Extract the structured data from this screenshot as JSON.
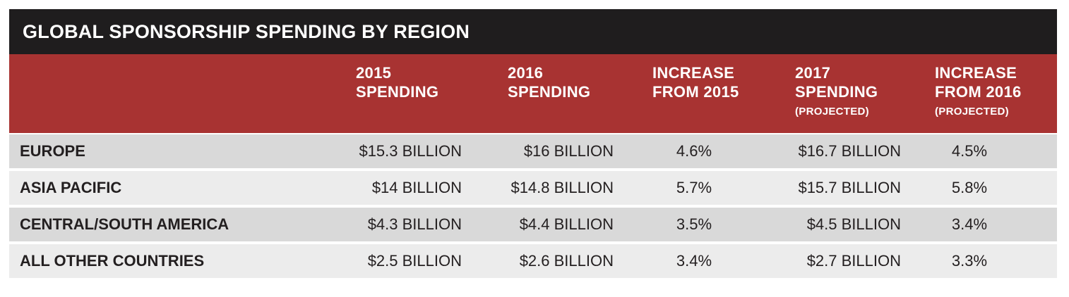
{
  "title": "GLOBAL SPONSORSHIP SPENDING BY REGION",
  "headers": [
    {
      "line1": "2015",
      "line2": "SPENDING",
      "sub": ""
    },
    {
      "line1": "2016",
      "line2": "SPENDING",
      "sub": ""
    },
    {
      "line1": "INCREASE",
      "line2": "FROM 2015",
      "sub": ""
    },
    {
      "line1": "2017",
      "line2": "SPENDING",
      "sub": "(PROJECTED)"
    },
    {
      "line1": "INCREASE",
      "line2": "FROM 2016",
      "sub": "(PROJECTED)"
    }
  ],
  "colors": {
    "title_bg": "#1f1d1e",
    "header_bg": "#a83332",
    "row_dark": "#d9d9d9",
    "row_light": "#ececec"
  },
  "chart_data": {
    "type": "table",
    "title": "GLOBAL SPONSORSHIP SPENDING BY REGION",
    "columns": [
      "",
      "2015 SPENDING",
      "2016 SPENDING",
      "INCREASE FROM 2015",
      "2017 SPENDING (PROJECTED)",
      "INCREASE FROM 2016 (PROJECTED)"
    ],
    "rows": [
      {
        "region": "EUROPE",
        "s2015": "$15.3 BILLION",
        "s2016": "$16 BILLION",
        "inc2015": "4.6%",
        "s2017": "$16.7 BILLION",
        "inc2016": "4.5%"
      },
      {
        "region": "ASIA PACIFIC",
        "s2015": "$14 BILLION",
        "s2016": "$14.8 BILLION",
        "inc2015": "5.7%",
        "s2017": "$15.7 BILLION",
        "inc2016": "5.8%"
      },
      {
        "region": "CENTRAL/SOUTH AMERICA",
        "s2015": "$4.3 BILLION",
        "s2016": "$4.4 BILLION",
        "inc2015": "3.5%",
        "s2017": "$4.5 BILLION",
        "inc2016": "3.4%"
      },
      {
        "region": "ALL OTHER COUNTRIES",
        "s2015": "$2.5 BILLION",
        "s2016": "$2.6 BILLION",
        "inc2015": "3.4%",
        "s2017": "$2.7 BILLION",
        "inc2016": "3.3%"
      }
    ]
  }
}
